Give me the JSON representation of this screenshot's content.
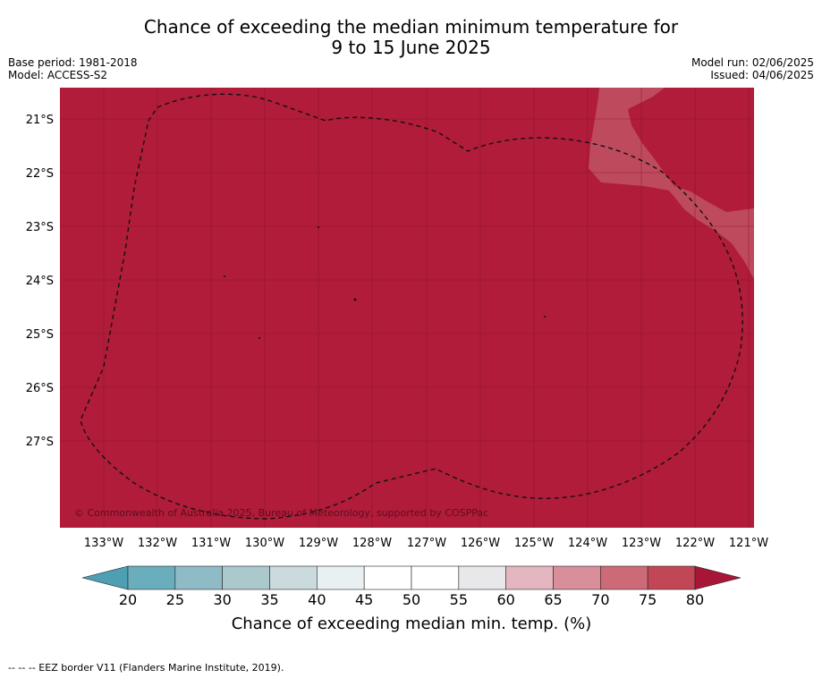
{
  "title_line1": "Chance of exceeding the median minimum temperature for",
  "title_line2": "9 to 15 June 2025",
  "meta_left": {
    "base_period": "Base period: 1981-2018",
    "model": "Model: ACCESS-S2"
  },
  "meta_right": {
    "model_run": "Model run: 02/06/2025",
    "issued": "Issued: 04/06/2025"
  },
  "map": {
    "lat_labels": [
      "21°S",
      "22°S",
      "23°S",
      "24°S",
      "25°S",
      "26°S",
      "27°S"
    ],
    "lon_labels": [
      "133°W",
      "132°W",
      "131°W",
      "130°W",
      "129°W",
      "128°W",
      "127°W",
      "126°W",
      "125°W",
      "124°W",
      "123°W",
      "122°W",
      "121°W"
    ],
    "copyright": "© Commonwealth of Australia 2025, Bureau of Meteorology, supported by COSPPac",
    "colors": {
      "dominant": "#b01c3a",
      "patch": "#be4a5d",
      "grid": "#8a1428"
    }
  },
  "colorbar": {
    "ticks": [
      "20",
      "25",
      "30",
      "35",
      "40",
      "45",
      "50",
      "55",
      "60",
      "65",
      "70",
      "75",
      "80"
    ],
    "colors": [
      "#6aaebe",
      "#8ebbc5",
      "#abc8cd",
      "#cbdadd",
      "#e8f0f2",
      "#ffffff",
      "#ffffff",
      "#e8e8ea",
      "#e4b6bf",
      "#d98f9a",
      "#cc6b77",
      "#c14756"
    ],
    "under_color": "#4f9fb3",
    "over_color": "#a81537",
    "label": "Chance of exceeding median min. temp. (%)"
  },
  "footer": "--  --  -- EEZ border V11 (Flanders Marine Institute, 2019)."
}
